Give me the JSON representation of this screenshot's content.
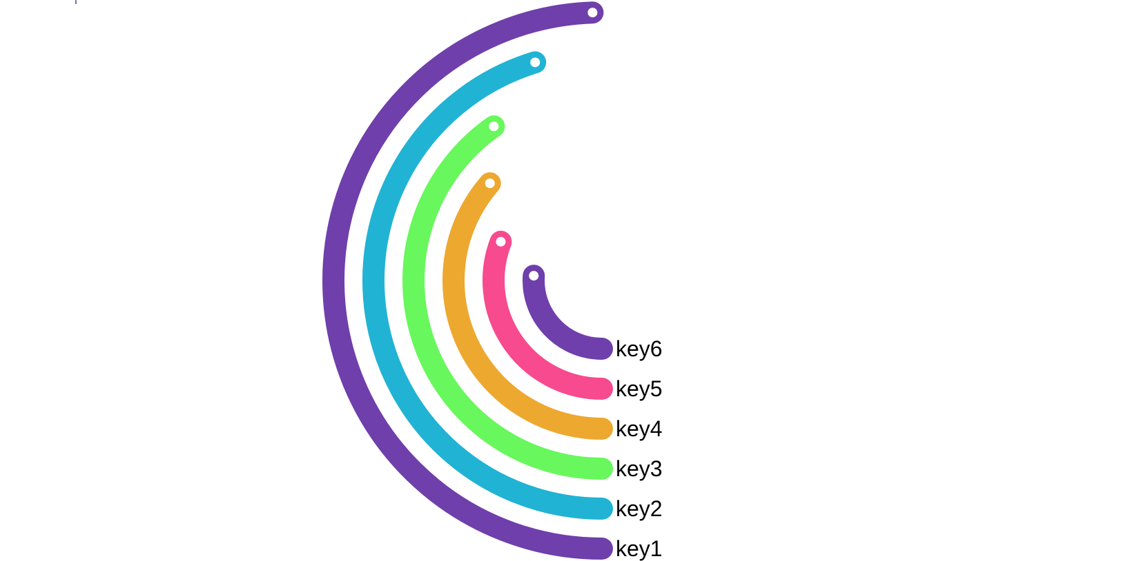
{
  "chart_data": {
    "type": "radial-bar",
    "start_angle_deg": 180,
    "value_max": 180,
    "categories": [
      "key1",
      "key2",
      "key3",
      "key4",
      "key5",
      "key6"
    ],
    "values": [
      178,
      163,
      145,
      131,
      111,
      94
    ],
    "colors": [
      "#6f3fab",
      "#21b3d3",
      "#68f75c",
      "#eda830",
      "#f74a8f",
      "#6f3fab"
    ],
    "grid": false,
    "legend": "none"
  }
}
